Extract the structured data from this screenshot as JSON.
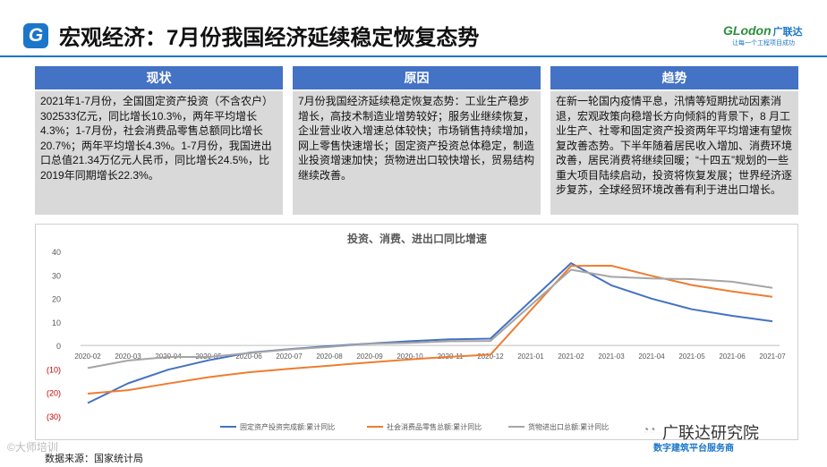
{
  "header": {
    "logo_letter": "G",
    "title": "宏观经济：7月份我国经济延续稳定恢复态势",
    "brand_name": "GLodon",
    "brand_cn": "广联达",
    "brand_slogan": "让每一个工程项目成功"
  },
  "columns": [
    {
      "heading": "现状",
      "text": "2021年1-7月份，全国固定资产投资（不含农户） 302533亿元，同比增长10.3%，两年平均增长4.3%；1-7月份，社会消费品零售总额同比增长20.7%；两年平均增长4.3%。1-7月份，我国进出口总值21.34万亿元人民币，同比增长24.5%，比2019年同期增长22.3%。"
    },
    {
      "heading": "原因",
      "text": "7月份我国经济延续稳定恢复态势：工业生产稳步增长，高技术制造业增势较好；服务业继续恢复，企业营业收入增速总体较快；市场销售持续增加，网上零售快速增长；固定资产投资总体稳定，制造业投资增速加快；货物进出口较快增长，贸易结构继续改善。"
    },
    {
      "heading": "趋势",
      "text": "在新一轮国内疫情平息，汛情等短期扰动因素消退，宏观政策向稳增长方向倾斜的背景下，8 月工业生产、社零和固定资产投资两年平均增速有望恢复改善态势。下半年随着居民收入增加、消费环境改善，居民消费将继续回暖；“十四五”规划的一些重大项目陆续启动，投资将恢复发展；世界经济逐步复苏，全球经贸环境改善有利于进出口增长。"
    }
  ],
  "chart_data": {
    "type": "line",
    "title": "投资、消费、进出口同比增速",
    "categories": [
      "2020-02",
      "2020-03",
      "2020-04",
      "2020-05",
      "2020-06",
      "2020-07",
      "2020-08",
      "2020-09",
      "2020-10",
      "2020-11",
      "2020-12",
      "2021-01",
      "2021-02",
      "2021-03",
      "2021-04",
      "2021-05",
      "2021-06",
      "2021-07"
    ],
    "ylim": [
      -30,
      40
    ],
    "yticks": [
      -30,
      -20,
      -10,
      0,
      10,
      20,
      30,
      40
    ],
    "ytick_labels": [
      "(30)",
      "(20)",
      "(10)",
      "0",
      "10",
      "20",
      "30",
      "40"
    ],
    "legend_position": "bottom",
    "series": [
      {
        "name": "固定资产投资完成额:累计同比",
        "color": "#4472c4",
        "values": [
          -24.5,
          -16.1,
          -10.3,
          -6.3,
          -3.1,
          -1.6,
          -0.3,
          0.8,
          1.8,
          2.6,
          2.9,
          null,
          35.0,
          25.6,
          19.9,
          15.4,
          12.6,
          10.3
        ]
      },
      {
        "name": "社会消费品零售总额:累计同比",
        "color": "#ed7d31",
        "values": [
          -20.5,
          -19.0,
          -16.2,
          -13.5,
          -11.4,
          -9.9,
          -8.6,
          -7.2,
          -5.9,
          -4.8,
          -3.9,
          null,
          33.8,
          33.9,
          29.6,
          25.7,
          23.0,
          20.7
        ]
      },
      {
        "name": "货物进出口总额:累计同比",
        "color": "#a5a5a5",
        "values": [
          -9.6,
          -6.4,
          -4.9,
          -4.9,
          -3.2,
          -1.7,
          -0.6,
          0.7,
          1.1,
          1.8,
          1.9,
          null,
          32.2,
          29.2,
          28.5,
          28.2,
          27.1,
          24.5
        ]
      }
    ]
  },
  "footer": {
    "source": "数据来源：国家统计局",
    "watermark": "©大师培训",
    "wechat_name": "广联达研究院",
    "wechat_sub": "数字建筑平台服务商"
  }
}
